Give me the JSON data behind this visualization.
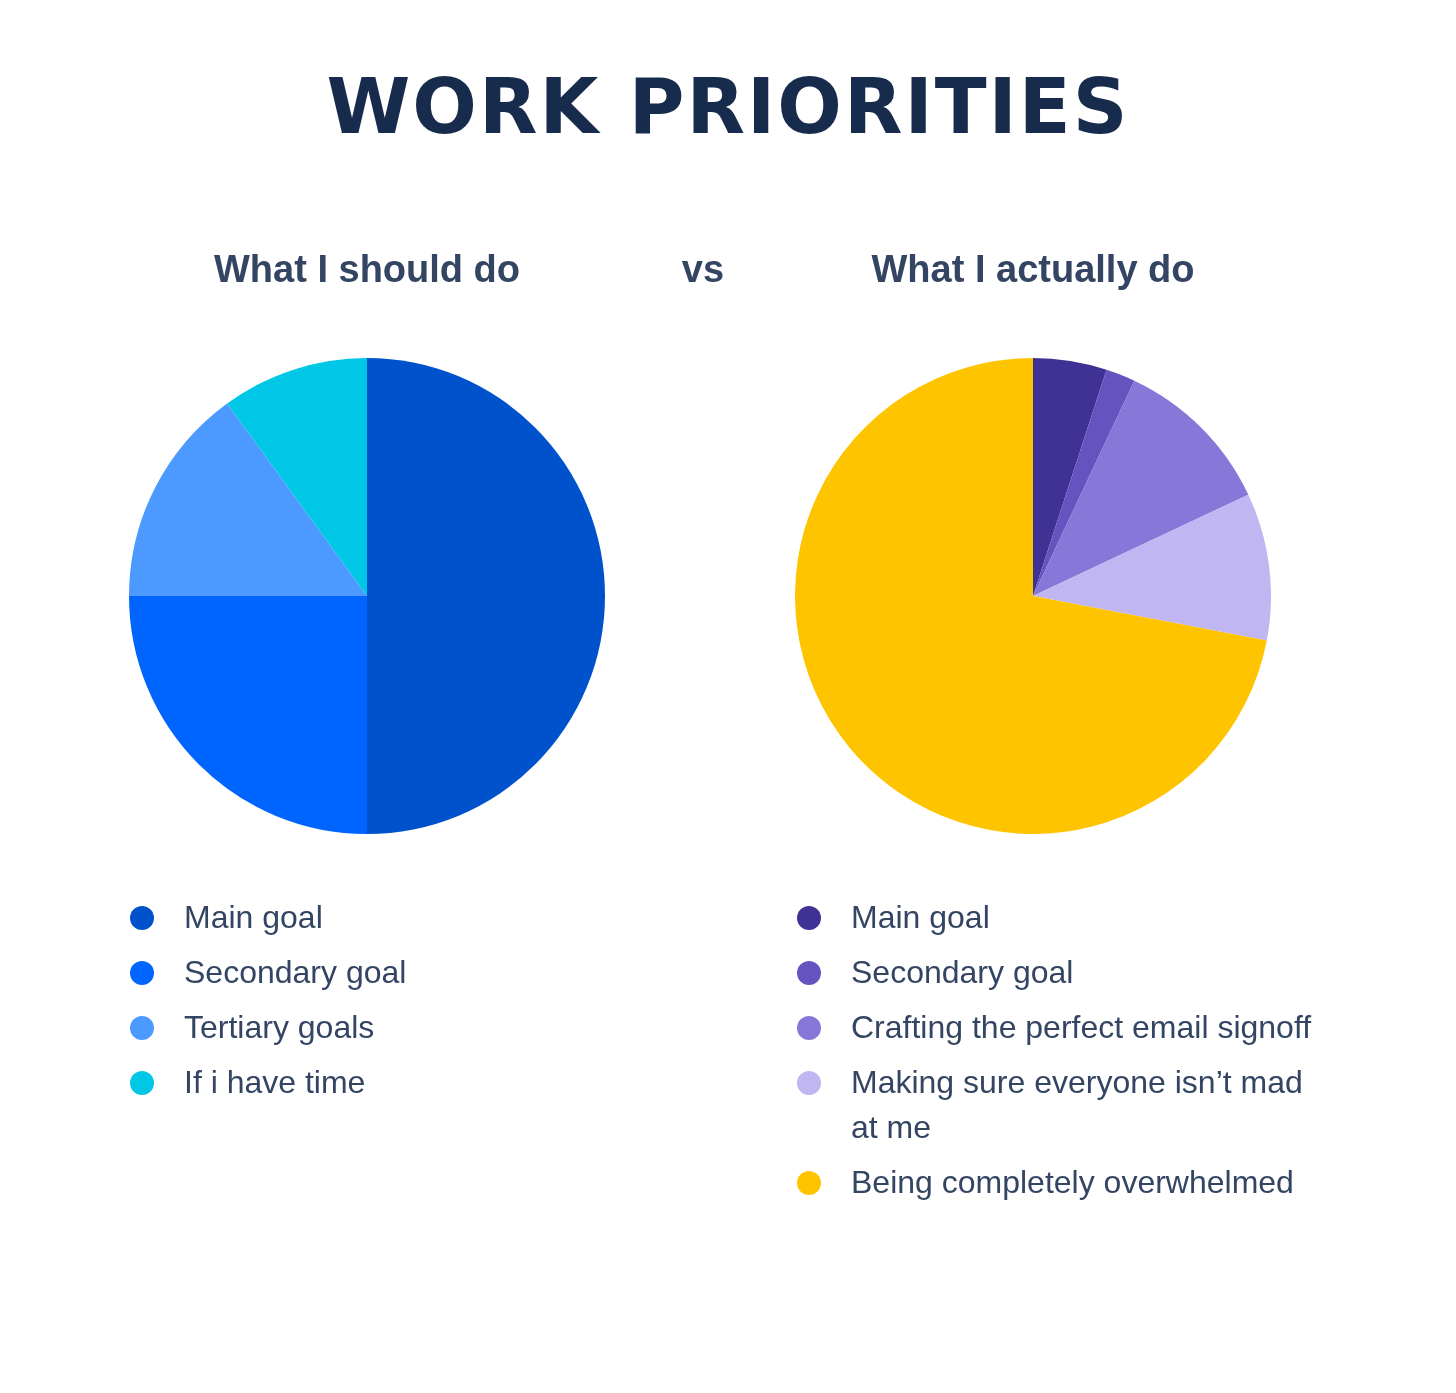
{
  "chart_data": [
    {
      "type": "pie",
      "title": "WORK PRIORITIES",
      "subtitle": "What I should do",
      "annotations": [
        "vs"
      ],
      "categories": [
        "Main goal",
        "Secondary goal",
        "Tertiary goals",
        "If i have time"
      ],
      "values": [
        50,
        25,
        15,
        10
      ],
      "colors": [
        "#0052cc",
        "#0065ff",
        "#4c9aff",
        "#00c7e6"
      ],
      "legend": "bottom"
    },
    {
      "type": "pie",
      "subtitle": "What I actually do",
      "categories": [
        "Main goal",
        "Secondary goal",
        "Crafting the perfect email signoff",
        "Making sure everyone isn’t mad at me",
        "Being completely overwhelmed"
      ],
      "values": [
        5,
        2,
        11,
        10,
        72
      ],
      "colors": [
        "#403294",
        "#6554c0",
        "#8777d9",
        "#c0b6f2",
        "#ffc400"
      ],
      "legend": "bottom"
    }
  ]
}
